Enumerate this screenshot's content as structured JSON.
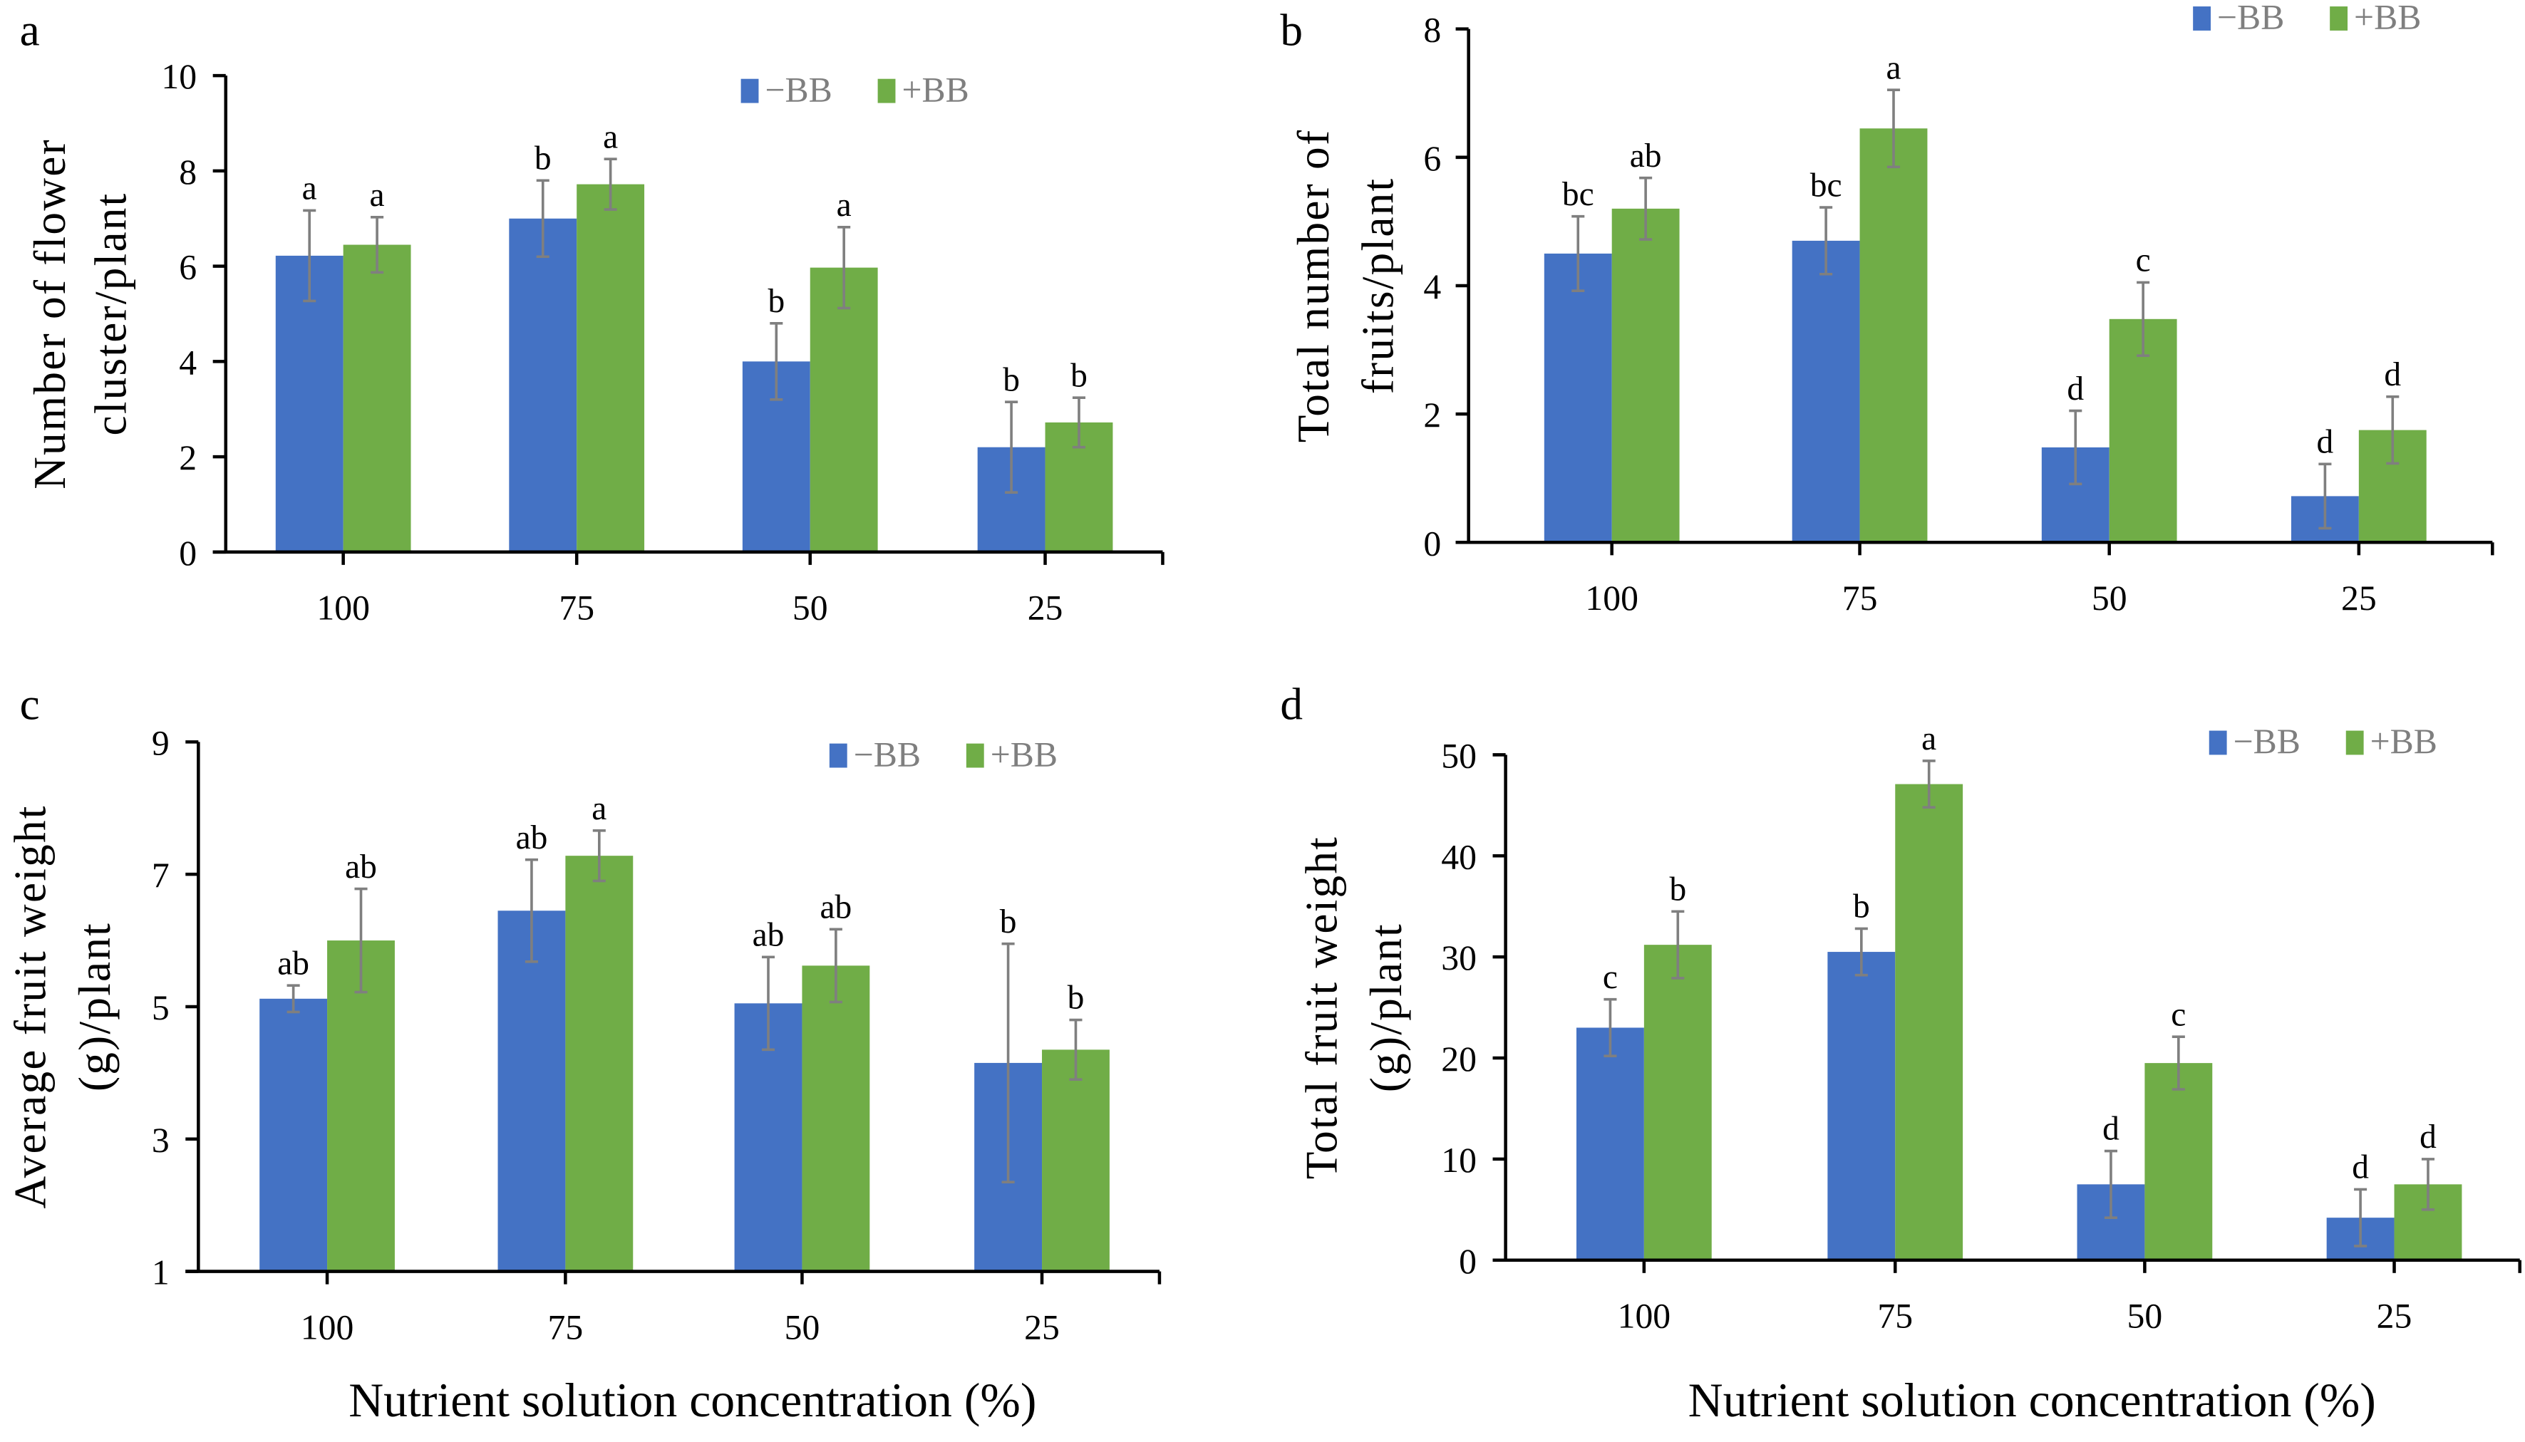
{
  "colors": {
    "minus_bb": "#4472C4",
    "plus_bb": "#70AD47",
    "error_bar": "#7f7f7f"
  },
  "chart_data": [
    {
      "panel": "a",
      "type": "bar",
      "title": "",
      "ylabel_lines": [
        "Number of flower",
        "cluster/plant"
      ],
      "xlabel": "",
      "categories": [
        "100",
        "75",
        "50",
        "25"
      ],
      "ylim": [
        0,
        10
      ],
      "yticks": [
        0,
        2,
        4,
        6,
        8,
        10
      ],
      "legend": {
        "position": "top-right",
        "entries": [
          "−BB",
          "+BB"
        ]
      },
      "grid": false,
      "series": [
        {
          "name": "−BB",
          "values": [
            6.22,
            7.0,
            4.0,
            2.2
          ],
          "errors": [
            0.95,
            0.8,
            0.8,
            0.95
          ],
          "letters": [
            "a",
            "b",
            "b",
            "b"
          ]
        },
        {
          "name": "+BB",
          "values": [
            6.45,
            7.72,
            5.97,
            2.72
          ],
          "errors": [
            0.58,
            0.53,
            0.85,
            0.52
          ],
          "letters": [
            "a",
            "a",
            "a",
            "b"
          ]
        }
      ]
    },
    {
      "panel": "b",
      "type": "bar",
      "title": "",
      "ylabel_lines": [
        "Total number of",
        "fruits/plant"
      ],
      "xlabel": "",
      "categories": [
        "100",
        "75",
        "50",
        "25"
      ],
      "ylim": [
        0,
        8
      ],
      "yticks": [
        0,
        2,
        4,
        6,
        8
      ],
      "legend": {
        "position": "top-right",
        "entries": [
          "−BB",
          "+BB"
        ]
      },
      "grid": false,
      "series": [
        {
          "name": "−BB",
          "values": [
            4.5,
            4.7,
            1.48,
            0.72
          ],
          "errors": [
            0.58,
            0.52,
            0.57,
            0.5
          ],
          "letters": [
            "bc",
            "bc",
            "d",
            "d"
          ]
        },
        {
          "name": "+BB",
          "values": [
            5.2,
            6.45,
            3.48,
            1.75
          ],
          "errors": [
            0.48,
            0.6,
            0.57,
            0.52
          ],
          "letters": [
            "ab",
            "a",
            "c",
            "d"
          ]
        }
      ]
    },
    {
      "panel": "c",
      "type": "bar",
      "title": "",
      "ylabel_lines": [
        "Average fruit weight",
        "(g)/plant"
      ],
      "xlabel": "Nutrient solution concentration (%)",
      "categories": [
        "100",
        "75",
        "50",
        "25"
      ],
      "ylim": [
        1,
        9
      ],
      "yticks": [
        1,
        3,
        5,
        7,
        9
      ],
      "legend": {
        "position": "top-right",
        "entries": [
          "−BB",
          "+BB"
        ]
      },
      "grid": false,
      "series": [
        {
          "name": "−BB",
          "values": [
            5.12,
            6.45,
            5.05,
            4.15
          ],
          "errors": [
            0.2,
            0.77,
            0.7,
            1.8
          ],
          "letters": [
            "ab",
            "ab",
            "ab",
            "b"
          ]
        },
        {
          "name": "+BB",
          "values": [
            6.0,
            7.28,
            5.62,
            4.35
          ],
          "errors": [
            0.78,
            0.38,
            0.55,
            0.45
          ],
          "letters": [
            "ab",
            "a",
            "ab",
            "b"
          ]
        }
      ]
    },
    {
      "panel": "d",
      "type": "bar",
      "title": "",
      "ylabel_lines": [
        "Total fruit weight",
        "(g)/plant"
      ],
      "xlabel": "Nutrient solution concentration (%)",
      "categories": [
        "100",
        "75",
        "50",
        "25"
      ],
      "ylim": [
        0,
        50
      ],
      "yticks": [
        0,
        10,
        20,
        30,
        40,
        50
      ],
      "legend": {
        "position": "top-right",
        "entries": [
          "−BB",
          "+BB"
        ]
      },
      "grid": false,
      "series": [
        {
          "name": "−BB",
          "values": [
            23.0,
            30.5,
            7.5,
            4.2
          ],
          "errors": [
            2.8,
            2.3,
            3.3,
            2.8
          ],
          "letters": [
            "c",
            "b",
            "d",
            "d"
          ]
        },
        {
          "name": "+BB",
          "values": [
            31.2,
            47.1,
            19.5,
            7.5
          ],
          "errors": [
            3.3,
            2.3,
            2.6,
            2.5
          ],
          "letters": [
            "b",
            "a",
            "c",
            "d"
          ]
        }
      ]
    }
  ]
}
